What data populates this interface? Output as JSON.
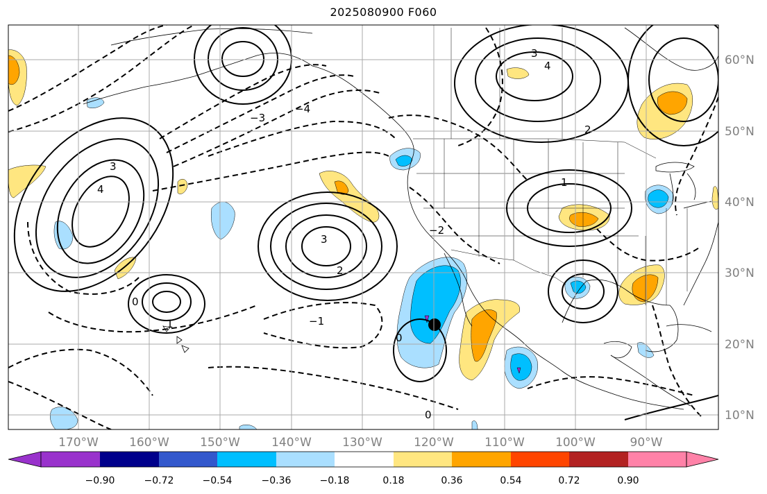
{
  "title": "2025080900 F060",
  "colors": {
    "ocean_bg": "#ffffff",
    "grid": "#a9a9a9",
    "coast": "#000000",
    "contour": "#000000"
  },
  "longitude_labels": [
    "170°W",
    "160°W",
    "150°W",
    "140°W",
    "130°W",
    "120°W",
    "110°W",
    "100°W",
    "90°W"
  ],
  "latitude_labels": [
    "60°N",
    "50°N",
    "40°N",
    "30°N",
    "20°N",
    "10°N"
  ],
  "colorbar": {
    "tick_labels": [
      "−0.90",
      "−0.72",
      "−0.54",
      "−0.36",
      "−0.18",
      "0.18",
      "0.36",
      "0.54",
      "0.72",
      "0.90"
    ],
    "colors": [
      "#9932cc",
      "#00008b",
      "#3358cc",
      "#00bfff",
      "#aadfff",
      "#ffffff",
      "#ffe680",
      "#ffa500",
      "#ff4500",
      "#b22222",
      "#ff82a8"
    ]
  },
  "contour_labels": [
    "0",
    "0",
    "1",
    "2",
    "3",
    "4",
    "3",
    "4",
    "3",
    "2",
    "1",
    "0",
    "−1",
    "−2",
    "−3",
    "−4"
  ],
  "marker": "storm-center-marker"
}
